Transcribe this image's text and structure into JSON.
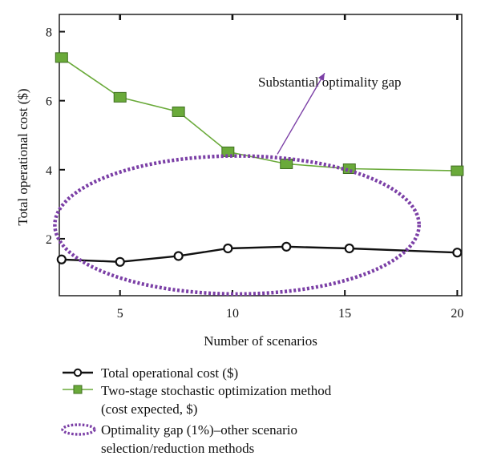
{
  "chart_data": {
    "type": "line",
    "xlabel": "Number of scenarios",
    "ylabel": "Total operational cost ($)",
    "xlim": [
      2.3,
      20.2
    ],
    "ylim": [
      0.35,
      8.5
    ],
    "x_ticks": [
      5,
      10,
      15,
      20
    ],
    "y_ticks": [
      2,
      4,
      6,
      8
    ],
    "grid": false,
    "legend_position": "bottom",
    "series": [
      {
        "name": "Total operational cost ($)",
        "color": "#111111",
        "marker": "circle",
        "x": [
          2.4,
          5,
          7.6,
          9.8,
          12.4,
          15.2,
          20
        ],
        "y": [
          1.4,
          1.33,
          1.5,
          1.72,
          1.77,
          1.72,
          1.6
        ]
      },
      {
        "name": "Two-stage stochastic optimization method (cost expected, $)",
        "legend_lines": [
          "Two-stage stochastic optimization method",
          "(cost expected, $)"
        ],
        "color": "#6aaa3a",
        "marker": "square",
        "x": [
          2.4,
          5,
          7.6,
          9.8,
          12.4,
          15.2,
          20
        ],
        "y": [
          7.25,
          6.1,
          5.68,
          4.52,
          4.17,
          4.03,
          3.97
        ]
      }
    ],
    "gap_ellipse": {
      "legend_lines": [
        "Optimality gap (1%)–other scenario",
        "selection/reduction methods"
      ],
      "color": "#7b3fa6",
      "center_x": 10.2,
      "center_y": 2.4,
      "radius_x": 8.1,
      "radius_y": 2.0
    },
    "annotation": {
      "text": "Substantial optimality gap",
      "arrow_from": [
        12.0,
        4.45
      ],
      "arrow_to": [
        14.1,
        6.8
      ]
    }
  }
}
